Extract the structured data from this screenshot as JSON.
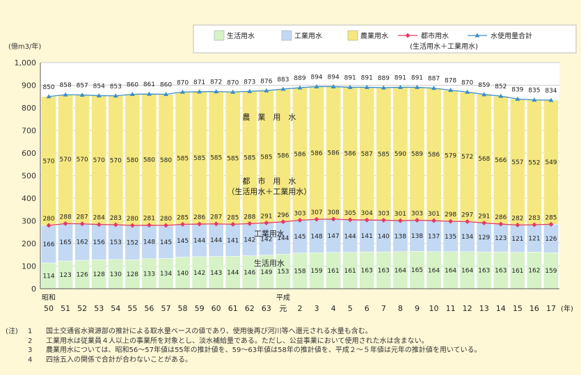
{
  "chart_data": {
    "type": "bar",
    "ylabel": "(億m3/年)",
    "ylim": [
      0,
      1000
    ],
    "yticks": [
      "0",
      "100",
      "200",
      "300",
      "400",
      "500",
      "600",
      "700",
      "800",
      "900",
      "1,000"
    ],
    "xunit": "(年)",
    "era_labels": [
      {
        "index": 0,
        "text": "昭和"
      },
      {
        "index": 14,
        "text": "平成"
      }
    ],
    "categories": [
      "50",
      "51",
      "52",
      "53",
      "54",
      "55",
      "56",
      "57",
      "58",
      "59",
      "60",
      "61",
      "62",
      "63",
      "元",
      "2",
      "3",
      "4",
      "5",
      "6",
      "7",
      "8",
      "9",
      "10",
      "11",
      "12",
      "13",
      "14",
      "15",
      "16",
      "17"
    ],
    "legend": {
      "seikatsu": "生活用水",
      "kogyo": "工業用水",
      "nogyo": "農業用水",
      "toshi": "都市用水",
      "toshi_sub": "(生活用水＋工業用水)",
      "total": "水使用量合計"
    },
    "in_chart_labels": {
      "nogyo": "農　業　用　水",
      "toshi": "都　市　用　水",
      "toshi_sub": "（生活用水＋工業用水）",
      "kogyo": "工業用水",
      "seikatsu": "生活用水"
    },
    "series": [
      {
        "key": "seikatsu",
        "name": "生活用水",
        "values": [
          114,
          123,
          126,
          128,
          130,
          128,
          133,
          134,
          140,
          142,
          143,
          144,
          146,
          149,
          153,
          158,
          159,
          161,
          161,
          163,
          163,
          164,
          165,
          164,
          164,
          164,
          163,
          163,
          161,
          162,
          159
        ]
      },
      {
        "key": "kogyo",
        "name": "工業用水",
        "values": [
          166,
          165,
          162,
          156,
          153,
          152,
          148,
          145,
          145,
          144,
          144,
          141,
          142,
          142,
          144,
          145,
          148,
          147,
          144,
          141,
          140,
          138,
          138,
          137,
          135,
          134,
          129,
          123,
          121,
          121,
          126
        ]
      },
      {
        "key": "nogyo",
        "name": "農業用水",
        "values": [
          570,
          570,
          570,
          570,
          570,
          580,
          580,
          580,
          585,
          585,
          585,
          585,
          585,
          585,
          586,
          586,
          586,
          586,
          586,
          587,
          585,
          590,
          589,
          586,
          579,
          572,
          568,
          566,
          557,
          552,
          549
        ]
      },
      {
        "key": "toshi",
        "name": "都市用水",
        "values": [
          280,
          288,
          287,
          284,
          283,
          280,
          281,
          280,
          285,
          286,
          287,
          285,
          288,
          291,
          296,
          303,
          307,
          308,
          305,
          304,
          303,
          301,
          303,
          301,
          298,
          297,
          291,
          286,
          282,
          283,
          285
        ]
      },
      {
        "key": "total",
        "name": "水使用量合計",
        "values": [
          850,
          858,
          857,
          854,
          853,
          860,
          861,
          860,
          870,
          871,
          872,
          870,
          873,
          876,
          883,
          889,
          894,
          894,
          891,
          891,
          889,
          891,
          891,
          887,
          878,
          870,
          859,
          852,
          839,
          835,
          834
        ]
      }
    ],
    "colors": {
      "seikatsu": "#d6f2c6",
      "kogyo": "#c3d8f2",
      "nogyo": "#f5e880",
      "toshi_line": "#e03c64",
      "total_line": "#3a8ec8",
      "background": "#fff8d6"
    },
    "grid": true
  },
  "notes": {
    "prefix": "(注)",
    "items": [
      {
        "num": "1",
        "text": "国土交通省水資源部の推計による取水量ベースの値であり、使用後再び河川等へ還元される水量も含む。"
      },
      {
        "num": "2",
        "text": "工業用水は従業員４人以上の事業所を対象とし、淡水補給量である。ただし、公益事業において使用された水は含まない。"
      },
      {
        "num": "3",
        "text": "農業用水については、昭和56～57年値は55年の推計値を、59～63年値は58年の推計値を、平成２～５年値は元年の推計値を用いている。"
      },
      {
        "num": "4",
        "text": "四捨五入の関係で合計が合わないことがある。"
      }
    ]
  }
}
